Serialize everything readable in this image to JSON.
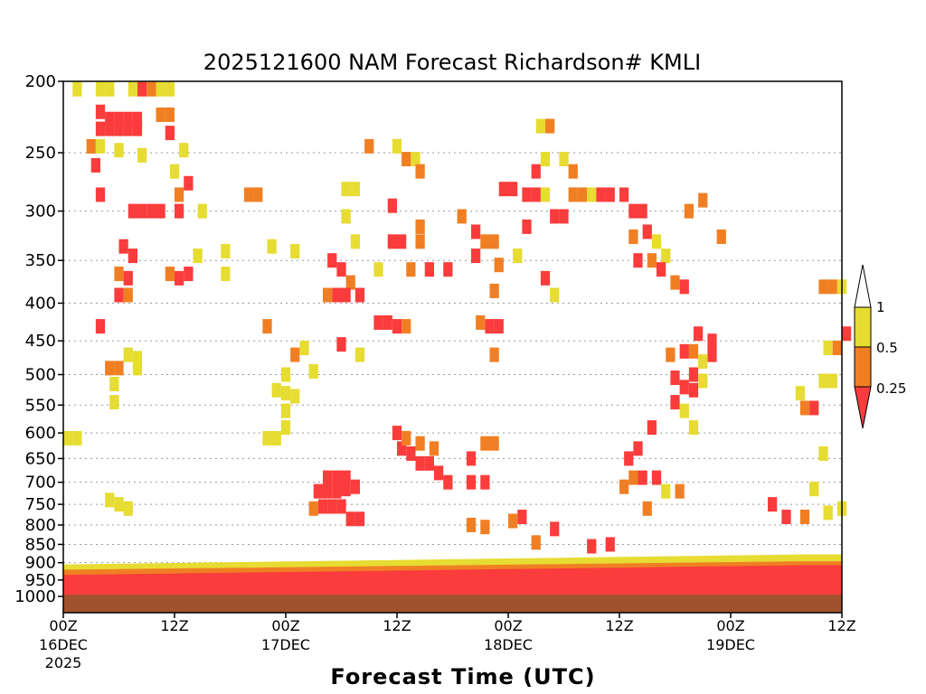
{
  "chart_data": {
    "type": "heatmap",
    "title": "2025121600 NAM Forecast Richardson# KMLI",
    "xlabel": "Forecast Time (UTC)",
    "ylabel": "",
    "x_range_hours": [
      0,
      84
    ],
    "y_axis": {
      "scale": "log-pressure",
      "range_hpa": [
        200,
        1000
      ],
      "ticks": [
        200,
        250,
        300,
        350,
        400,
        450,
        500,
        550,
        600,
        650,
        700,
        750,
        800,
        850,
        900,
        950,
        1000
      ],
      "tick_labels": [
        "200",
        "250",
        "300",
        "350",
        "400",
        "450",
        "500",
        "550",
        "600",
        "650",
        "700",
        "750",
        "800",
        "850",
        "900",
        "950",
        "1000"
      ]
    },
    "x_ticks": [
      {
        "hour": 0,
        "top": "00Z",
        "mid": "16DEC",
        "bot": "2025"
      },
      {
        "hour": 12,
        "top": "12Z",
        "mid": "",
        "bot": ""
      },
      {
        "hour": 24,
        "top": "00Z",
        "mid": "17DEC",
        "bot": ""
      },
      {
        "hour": 36,
        "top": "12Z",
        "mid": "",
        "bot": ""
      },
      {
        "hour": 48,
        "top": "00Z",
        "mid": "18DEC",
        "bot": ""
      },
      {
        "hour": 60,
        "top": "12Z",
        "mid": "",
        "bot": ""
      },
      {
        "hour": 72,
        "top": "00Z",
        "mid": "19DEC",
        "bot": ""
      },
      {
        "hour": 84,
        "top": "12Z",
        "mid": "",
        "bot": ""
      }
    ],
    "grid": "dotted horizontal at pressure ticks",
    "legend": {
      "placement": "right",
      "bins": [
        {
          "range": "> 1",
          "color": "#ffffff"
        },
        {
          "range": "0.5 – 1",
          "color": "#e6dc32"
        },
        {
          "range": "0.25 – 0.5",
          "color": "#f07f24"
        },
        {
          "range": "< 0.25",
          "color": "#fa3c3c"
        }
      ],
      "labels": [
        "1",
        "0.5",
        "0.25"
      ]
    },
    "colors": {
      "yellow": "#e6dc32",
      "orange": "#f07f24",
      "red": "#fa3c3c",
      "ground": "#a0522d"
    },
    "cells": [
      {
        "t": 1.5,
        "p": 205,
        "c": "Y"
      },
      {
        "t": 4,
        "p": 205,
        "c": "Y"
      },
      {
        "t": 5,
        "p": 205,
        "c": "Y"
      },
      {
        "t": 7.5,
        "p": 205,
        "c": "Y"
      },
      {
        "t": 8.5,
        "p": 205,
        "c": "R"
      },
      {
        "t": 9.5,
        "p": 205,
        "c": "O"
      },
      {
        "t": 10.5,
        "p": 205,
        "c": "Y"
      },
      {
        "t": 11.5,
        "p": 205,
        "c": "Y"
      },
      {
        "t": 4,
        "p": 220,
        "c": "R"
      },
      {
        "t": 5,
        "p": 225,
        "c": "R"
      },
      {
        "t": 6,
        "p": 225,
        "c": "R"
      },
      {
        "t": 7,
        "p": 225,
        "c": "R"
      },
      {
        "t": 8,
        "p": 225,
        "c": "R"
      },
      {
        "t": 10.5,
        "p": 222,
        "c": "O"
      },
      {
        "t": 11.5,
        "p": 222,
        "c": "O"
      },
      {
        "t": 4,
        "p": 232,
        "c": "R"
      },
      {
        "t": 5,
        "p": 232,
        "c": "R"
      },
      {
        "t": 6,
        "p": 232,
        "c": "R"
      },
      {
        "t": 7,
        "p": 232,
        "c": "R"
      },
      {
        "t": 8,
        "p": 232,
        "c": "R"
      },
      {
        "t": 11.5,
        "p": 235,
        "c": "R"
      },
      {
        "t": 3,
        "p": 245,
        "c": "O"
      },
      {
        "t": 4,
        "p": 245,
        "c": "Y"
      },
      {
        "t": 6,
        "p": 248,
        "c": "Y"
      },
      {
        "t": 8.5,
        "p": 252,
        "c": "Y"
      },
      {
        "t": 13,
        "p": 248,
        "c": "Y"
      },
      {
        "t": 3.5,
        "p": 260,
        "c": "R"
      },
      {
        "t": 12,
        "p": 265,
        "c": "Y"
      },
      {
        "t": 13.5,
        "p": 275,
        "c": "R"
      },
      {
        "t": 12.5,
        "p": 285,
        "c": "O"
      },
      {
        "t": 20,
        "p": 285,
        "c": "O"
      },
      {
        "t": 4,
        "p": 285,
        "c": "R"
      },
      {
        "t": 7.5,
        "p": 300,
        "c": "R"
      },
      {
        "t": 8.5,
        "p": 300,
        "c": "R"
      },
      {
        "t": 9.5,
        "p": 300,
        "c": "R"
      },
      {
        "t": 10.5,
        "p": 300,
        "c": "R"
      },
      {
        "t": 12.5,
        "p": 300,
        "c": "R"
      },
      {
        "t": 15,
        "p": 300,
        "c": "Y"
      },
      {
        "t": 6.5,
        "p": 335,
        "c": "R"
      },
      {
        "t": 7.5,
        "p": 345,
        "c": "R"
      },
      {
        "t": 6,
        "p": 365,
        "c": "O"
      },
      {
        "t": 7,
        "p": 370,
        "c": "R"
      },
      {
        "t": 11.5,
        "p": 365,
        "c": "O"
      },
      {
        "t": 12.5,
        "p": 370,
        "c": "R"
      },
      {
        "t": 13.5,
        "p": 365,
        "c": "R"
      },
      {
        "t": 14.5,
        "p": 345,
        "c": "Y"
      },
      {
        "t": 17.5,
        "p": 340,
        "c": "Y"
      },
      {
        "t": 17.5,
        "p": 365,
        "c": "Y"
      },
      {
        "t": 6,
        "p": 390,
        "c": "R"
      },
      {
        "t": 7,
        "p": 390,
        "c": "O"
      },
      {
        "t": 4,
        "p": 430,
        "c": "R"
      },
      {
        "t": 7,
        "p": 470,
        "c": "Y"
      },
      {
        "t": 8,
        "p": 475,
        "c": "Y"
      },
      {
        "t": 5,
        "p": 490,
        "c": "O"
      },
      {
        "t": 6,
        "p": 490,
        "c": "O"
      },
      {
        "t": 8,
        "p": 490,
        "c": "Y"
      },
      {
        "t": 5.5,
        "p": 515,
        "c": "Y"
      },
      {
        "t": 5.5,
        "p": 545,
        "c": "Y"
      },
      {
        "t": 0.5,
        "p": 610,
        "c": "Y"
      },
      {
        "t": 1.5,
        "p": 610,
        "c": "Y"
      },
      {
        "t": 5,
        "p": 740,
        "c": "Y"
      },
      {
        "t": 6,
        "p": 750,
        "c": "Y"
      },
      {
        "t": 7,
        "p": 760,
        "c": "Y"
      },
      {
        "t": 21,
        "p": 285,
        "c": "O"
      },
      {
        "t": 22.5,
        "p": 335,
        "c": "Y"
      },
      {
        "t": 25,
        "p": 340,
        "c": "Y"
      },
      {
        "t": 22,
        "p": 430,
        "c": "O"
      },
      {
        "t": 25,
        "p": 470,
        "c": "O"
      },
      {
        "t": 24,
        "p": 500,
        "c": "Y"
      },
      {
        "t": 23,
        "p": 525,
        "c": "Y"
      },
      {
        "t": 24,
        "p": 530,
        "c": "Y"
      },
      {
        "t": 25,
        "p": 535,
        "c": "Y"
      },
      {
        "t": 24,
        "p": 560,
        "c": "Y"
      },
      {
        "t": 24,
        "p": 590,
        "c": "Y"
      },
      {
        "t": 22,
        "p": 610,
        "c": "Y"
      },
      {
        "t": 23,
        "p": 610,
        "c": "Y"
      },
      {
        "t": 26,
        "p": 460,
        "c": "Y"
      },
      {
        "t": 27,
        "p": 495,
        "c": "Y"
      },
      {
        "t": 30.5,
        "p": 280,
        "c": "Y"
      },
      {
        "t": 31.5,
        "p": 280,
        "c": "Y"
      },
      {
        "t": 30.5,
        "p": 305,
        "c": "Y"
      },
      {
        "t": 31.5,
        "p": 330,
        "c": "Y"
      },
      {
        "t": 29,
        "p": 350,
        "c": "R"
      },
      {
        "t": 30,
        "p": 360,
        "c": "R"
      },
      {
        "t": 31,
        "p": 375,
        "c": "O"
      },
      {
        "t": 28.5,
        "p": 390,
        "c": "O"
      },
      {
        "t": 29.5,
        "p": 390,
        "c": "R"
      },
      {
        "t": 30.5,
        "p": 390,
        "c": "R"
      },
      {
        "t": 32,
        "p": 390,
        "c": "R"
      },
      {
        "t": 30,
        "p": 455,
        "c": "R"
      },
      {
        "t": 32,
        "p": 470,
        "c": "Y"
      },
      {
        "t": 33,
        "p": 245,
        "c": "O"
      },
      {
        "t": 36,
        "p": 245,
        "c": "Y"
      },
      {
        "t": 37,
        "p": 255,
        "c": "O"
      },
      {
        "t": 38,
        "p": 255,
        "c": "Y"
      },
      {
        "t": 38.5,
        "p": 265,
        "c": "O"
      },
      {
        "t": 35.5,
        "p": 295,
        "c": "R"
      },
      {
        "t": 36.5,
        "p": 330,
        "c": "R"
      },
      {
        "t": 35.5,
        "p": 330,
        "c": "R"
      },
      {
        "t": 38.5,
        "p": 315,
        "c": "O"
      },
      {
        "t": 38.5,
        "p": 330,
        "c": "O"
      },
      {
        "t": 37.5,
        "p": 360,
        "c": "O"
      },
      {
        "t": 39.5,
        "p": 360,
        "c": "R"
      },
      {
        "t": 41.5,
        "p": 360,
        "c": "R"
      },
      {
        "t": 34,
        "p": 360,
        "c": "Y"
      },
      {
        "t": 34,
        "p": 425,
        "c": "R"
      },
      {
        "t": 35,
        "p": 425,
        "c": "R"
      },
      {
        "t": 36,
        "p": 430,
        "c": "R"
      },
      {
        "t": 37,
        "p": 430,
        "c": "O"
      },
      {
        "t": 43,
        "p": 305,
        "c": "O"
      },
      {
        "t": 44.5,
        "p": 320,
        "c": "R"
      },
      {
        "t": 44.5,
        "p": 345,
        "c": "R"
      },
      {
        "t": 45.5,
        "p": 330,
        "c": "O"
      },
      {
        "t": 46.5,
        "p": 330,
        "c": "O"
      },
      {
        "t": 47,
        "p": 355,
        "c": "O"
      },
      {
        "t": 46.5,
        "p": 385,
        "c": "O"
      },
      {
        "t": 46,
        "p": 430,
        "c": "R"
      },
      {
        "t": 47,
        "p": 430,
        "c": "R"
      },
      {
        "t": 45,
        "p": 425,
        "c": "O"
      },
      {
        "t": 46.5,
        "p": 470,
        "c": "O"
      },
      {
        "t": 47.5,
        "p": 280,
        "c": "R"
      },
      {
        "t": 48.5,
        "p": 280,
        "c": "R"
      },
      {
        "t": 50,
        "p": 285,
        "c": "R"
      },
      {
        "t": 51,
        "p": 285,
        "c": "R"
      },
      {
        "t": 52,
        "p": 285,
        "c": "Y"
      },
      {
        "t": 50,
        "p": 315,
        "c": "R"
      },
      {
        "t": 49,
        "p": 345,
        "c": "Y"
      },
      {
        "t": 51,
        "p": 265,
        "c": "R"
      },
      {
        "t": 52,
        "p": 255,
        "c": "Y"
      },
      {
        "t": 51.5,
        "p": 230,
        "c": "Y"
      },
      {
        "t": 52.5,
        "p": 230,
        "c": "O"
      },
      {
        "t": 54,
        "p": 255,
        "c": "Y"
      },
      {
        "t": 55,
        "p": 265,
        "c": "O"
      },
      {
        "t": 53,
        "p": 305,
        "c": "R"
      },
      {
        "t": 54,
        "p": 305,
        "c": "R"
      },
      {
        "t": 52,
        "p": 370,
        "c": "R"
      },
      {
        "t": 53,
        "p": 390,
        "c": "Y"
      },
      {
        "t": 55,
        "p": 285,
        "c": "O"
      },
      {
        "t": 56,
        "p": 285,
        "c": "O"
      },
      {
        "t": 57,
        "p": 285,
        "c": "Y"
      },
      {
        "t": 58,
        "p": 285,
        "c": "R"
      },
      {
        "t": 59,
        "p": 285,
        "c": "R"
      },
      {
        "t": 60.5,
        "p": 285,
        "c": "R"
      },
      {
        "t": 61.5,
        "p": 300,
        "c": "R"
      },
      {
        "t": 62.5,
        "p": 300,
        "c": "R"
      },
      {
        "t": 63,
        "p": 320,
        "c": "R"
      },
      {
        "t": 64,
        "p": 330,
        "c": "Y"
      },
      {
        "t": 61.5,
        "p": 325,
        "c": "O"
      },
      {
        "t": 62,
        "p": 350,
        "c": "R"
      },
      {
        "t": 63.5,
        "p": 350,
        "c": "O"
      },
      {
        "t": 65,
        "p": 345,
        "c": "Y"
      },
      {
        "t": 67.5,
        "p": 300,
        "c": "O"
      },
      {
        "t": 64.5,
        "p": 360,
        "c": "R"
      },
      {
        "t": 66,
        "p": 375,
        "c": "O"
      },
      {
        "t": 67,
        "p": 380,
        "c": "R"
      },
      {
        "t": 69,
        "p": 290,
        "c": "O"
      },
      {
        "t": 68.5,
        "p": 440,
        "c": "R"
      },
      {
        "t": 70,
        "p": 450,
        "c": "R"
      },
      {
        "t": 68,
        "p": 465,
        "c": "O"
      },
      {
        "t": 67,
        "p": 465,
        "c": "R"
      },
      {
        "t": 65.5,
        "p": 470,
        "c": "O"
      },
      {
        "t": 68,
        "p": 500,
        "c": "R"
      },
      {
        "t": 66,
        "p": 505,
        "c": "R"
      },
      {
        "t": 67,
        "p": 520,
        "c": "R"
      },
      {
        "t": 68,
        "p": 525,
        "c": "R"
      },
      {
        "t": 66,
        "p": 545,
        "c": "R"
      },
      {
        "t": 67,
        "p": 560,
        "c": "Y"
      },
      {
        "t": 68,
        "p": 590,
        "c": "Y"
      },
      {
        "t": 70,
        "p": 470,
        "c": "R"
      },
      {
        "t": 69,
        "p": 480,
        "c": "Y"
      },
      {
        "t": 69,
        "p": 510,
        "c": "Y"
      },
      {
        "t": 63.5,
        "p": 590,
        "c": "R"
      },
      {
        "t": 62,
        "p": 630,
        "c": "R"
      },
      {
        "t": 61,
        "p": 650,
        "c": "R"
      },
      {
        "t": 61.5,
        "p": 690,
        "c": "O"
      },
      {
        "t": 60.5,
        "p": 710,
        "c": "O"
      },
      {
        "t": 62.5,
        "p": 690,
        "c": "R"
      },
      {
        "t": 64,
        "p": 690,
        "c": "R"
      },
      {
        "t": 65,
        "p": 720,
        "c": "Y"
      },
      {
        "t": 66.5,
        "p": 720,
        "c": "O"
      },
      {
        "t": 63,
        "p": 760,
        "c": "O"
      },
      {
        "t": 71,
        "p": 325,
        "c": "O"
      },
      {
        "t": 76.5,
        "p": 750,
        "c": "R"
      },
      {
        "t": 78,
        "p": 780,
        "c": "R"
      },
      {
        "t": 80,
        "p": 780,
        "c": "O"
      },
      {
        "t": 82.5,
        "p": 770,
        "c": "Y"
      },
      {
        "t": 84,
        "p": 760,
        "c": "Y"
      },
      {
        "t": 82,
        "p": 510,
        "c": "Y"
      },
      {
        "t": 83,
        "p": 510,
        "c": "Y"
      },
      {
        "t": 82.5,
        "p": 460,
        "c": "Y"
      },
      {
        "t": 83.5,
        "p": 460,
        "c": "O"
      },
      {
        "t": 84.5,
        "p": 440,
        "c": "R"
      },
      {
        "t": 82,
        "p": 380,
        "c": "O"
      },
      {
        "t": 83,
        "p": 380,
        "c": "O"
      },
      {
        "t": 84,
        "p": 380,
        "c": "Y"
      },
      {
        "t": 80,
        "p": 555,
        "c": "O"
      },
      {
        "t": 81,
        "p": 555,
        "c": "R"
      },
      {
        "t": 79.5,
        "p": 530,
        "c": "Y"
      },
      {
        "t": 82,
        "p": 640,
        "c": "Y"
      },
      {
        "t": 81,
        "p": 715,
        "c": "Y"
      },
      {
        "t": 27.5,
        "p": 720,
        "c": "R"
      },
      {
        "t": 28.5,
        "p": 720,
        "c": "R"
      },
      {
        "t": 29.5,
        "p": 720,
        "c": "R"
      },
      {
        "t": 30.5,
        "p": 715,
        "c": "R"
      },
      {
        "t": 31.5,
        "p": 710,
        "c": "R"
      },
      {
        "t": 28.5,
        "p": 690,
        "c": "R"
      },
      {
        "t": 29.5,
        "p": 690,
        "c": "R"
      },
      {
        "t": 30.5,
        "p": 690,
        "c": "R"
      },
      {
        "t": 27,
        "p": 760,
        "c": "O"
      },
      {
        "t": 28,
        "p": 755,
        "c": "R"
      },
      {
        "t": 29,
        "p": 755,
        "c": "R"
      },
      {
        "t": 30,
        "p": 755,
        "c": "R"
      },
      {
        "t": 31,
        "p": 785,
        "c": "R"
      },
      {
        "t": 32,
        "p": 785,
        "c": "R"
      },
      {
        "t": 36.5,
        "p": 630,
        "c": "R"
      },
      {
        "t": 37.5,
        "p": 640,
        "c": "R"
      },
      {
        "t": 38.5,
        "p": 660,
        "c": "R"
      },
      {
        "t": 39.5,
        "p": 660,
        "c": "R"
      },
      {
        "t": 40.5,
        "p": 680,
        "c": "R"
      },
      {
        "t": 41.5,
        "p": 700,
        "c": "R"
      },
      {
        "t": 36,
        "p": 600,
        "c": "R"
      },
      {
        "t": 37,
        "p": 610,
        "c": "O"
      },
      {
        "t": 38.5,
        "p": 620,
        "c": "O"
      },
      {
        "t": 40,
        "p": 630,
        "c": "O"
      },
      {
        "t": 44,
        "p": 700,
        "c": "R"
      },
      {
        "t": 45.5,
        "p": 700,
        "c": "R"
      },
      {
        "t": 44,
        "p": 650,
        "c": "R"
      },
      {
        "t": 45.5,
        "p": 620,
        "c": "O"
      },
      {
        "t": 46.5,
        "p": 620,
        "c": "O"
      },
      {
        "t": 44,
        "p": 800,
        "c": "O"
      },
      {
        "t": 45.5,
        "p": 805,
        "c": "O"
      },
      {
        "t": 49.5,
        "p": 780,
        "c": "R"
      },
      {
        "t": 48.5,
        "p": 790,
        "c": "O"
      },
      {
        "t": 53,
        "p": 810,
        "c": "R"
      },
      {
        "t": 51,
        "p": 845,
        "c": "O"
      },
      {
        "t": 57,
        "p": 855,
        "c": "R"
      },
      {
        "t": 59,
        "p": 850,
        "c": "R"
      }
    ]
  }
}
